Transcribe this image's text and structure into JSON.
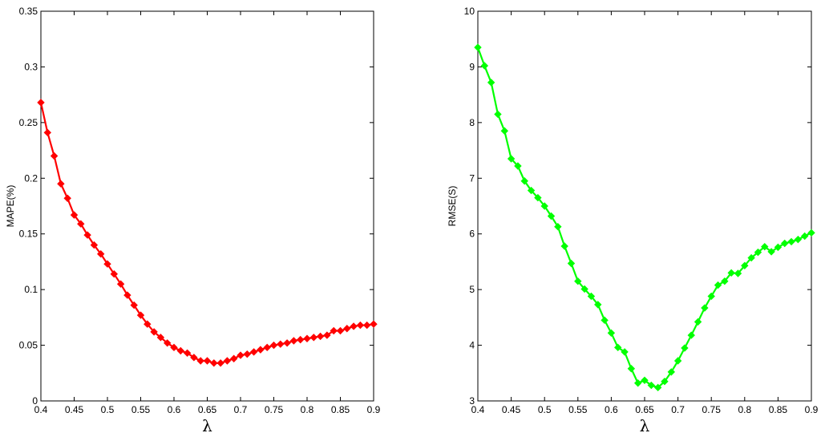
{
  "chart_data": [
    {
      "type": "line",
      "xlabel": "λ",
      "ylabel": "MAPE(%)",
      "xlim": [
        0.4,
        0.9
      ],
      "ylim": [
        0,
        0.35
      ],
      "xticks": [
        "0.4",
        "0.45",
        "0.5",
        "0.55",
        "0.6",
        "0.65",
        "0.7",
        "0.75",
        "0.8",
        "0.85",
        "0.9"
      ],
      "yticks": [
        "0",
        "0.05",
        "0.1",
        "0.15",
        "0.2",
        "0.25",
        "0.3",
        "0.35"
      ],
      "grid": false,
      "color": "#ff0000",
      "x": [
        0.4,
        0.41,
        0.42,
        0.43,
        0.44,
        0.45,
        0.46,
        0.47,
        0.48,
        0.49,
        0.5,
        0.51,
        0.52,
        0.53,
        0.54,
        0.55,
        0.56,
        0.57,
        0.58,
        0.59,
        0.6,
        0.61,
        0.62,
        0.63,
        0.64,
        0.65,
        0.66,
        0.67,
        0.68,
        0.69,
        0.7,
        0.71,
        0.72,
        0.73,
        0.74,
        0.75,
        0.76,
        0.77,
        0.78,
        0.79,
        0.8,
        0.81,
        0.82,
        0.83,
        0.84,
        0.85,
        0.86,
        0.87,
        0.88,
        0.89,
        0.9
      ],
      "series": [
        {
          "values": [
            0.268,
            0.241,
            0.22,
            0.195,
            0.182,
            0.167,
            0.159,
            0.149,
            0.14,
            0.132,
            0.123,
            0.114,
            0.105,
            0.095,
            0.086,
            0.077,
            0.069,
            0.062,
            0.057,
            0.052,
            0.048,
            0.045,
            0.043,
            0.039,
            0.036,
            0.036,
            0.034,
            0.034,
            0.036,
            0.038,
            0.041,
            0.042,
            0.044,
            0.046,
            0.048,
            0.05,
            0.051,
            0.052,
            0.054,
            0.055,
            0.056,
            0.057,
            0.058,
            0.059,
            0.063,
            0.063,
            0.065,
            0.067,
            0.068,
            0.068,
            0.069
          ]
        }
      ]
    },
    {
      "type": "line",
      "xlabel": "λ",
      "ylabel": "RMSE(S)",
      "xlim": [
        0.4,
        0.9
      ],
      "ylim": [
        3,
        10
      ],
      "xticks": [
        "0.4",
        "0.45",
        "0.5",
        "0.55",
        "0.6",
        "0.65",
        "0.7",
        "0.75",
        "0.8",
        "0.85",
        "0.9"
      ],
      "yticks": [
        "3",
        "4",
        "5",
        "6",
        "7",
        "8",
        "9",
        "10"
      ],
      "grid": false,
      "color": "#00ff00",
      "x": [
        0.4,
        0.41,
        0.42,
        0.43,
        0.44,
        0.45,
        0.46,
        0.47,
        0.48,
        0.49,
        0.5,
        0.51,
        0.52,
        0.53,
        0.54,
        0.55,
        0.56,
        0.57,
        0.58,
        0.59,
        0.6,
        0.61,
        0.62,
        0.63,
        0.64,
        0.65,
        0.66,
        0.67,
        0.68,
        0.69,
        0.7,
        0.71,
        0.72,
        0.73,
        0.74,
        0.75,
        0.76,
        0.77,
        0.78,
        0.79,
        0.8,
        0.81,
        0.82,
        0.83,
        0.84,
        0.85,
        0.86,
        0.87,
        0.88,
        0.89,
        0.9
      ],
      "series": [
        {
          "values": [
            9.35,
            9.02,
            8.72,
            8.15,
            7.85,
            7.35,
            7.22,
            6.95,
            6.78,
            6.65,
            6.5,
            6.32,
            6.13,
            5.78,
            5.47,
            5.15,
            5.01,
            4.88,
            4.73,
            4.45,
            4.22,
            3.96,
            3.88,
            3.58,
            3.32,
            3.37,
            3.28,
            3.24,
            3.35,
            3.52,
            3.72,
            3.95,
            4.18,
            4.42,
            4.67,
            4.88,
            5.08,
            5.15,
            5.3,
            5.29,
            5.43,
            5.57,
            5.67,
            5.77,
            5.68,
            5.76,
            5.83,
            5.86,
            5.9,
            5.96,
            6.02
          ]
        }
      ]
    }
  ]
}
